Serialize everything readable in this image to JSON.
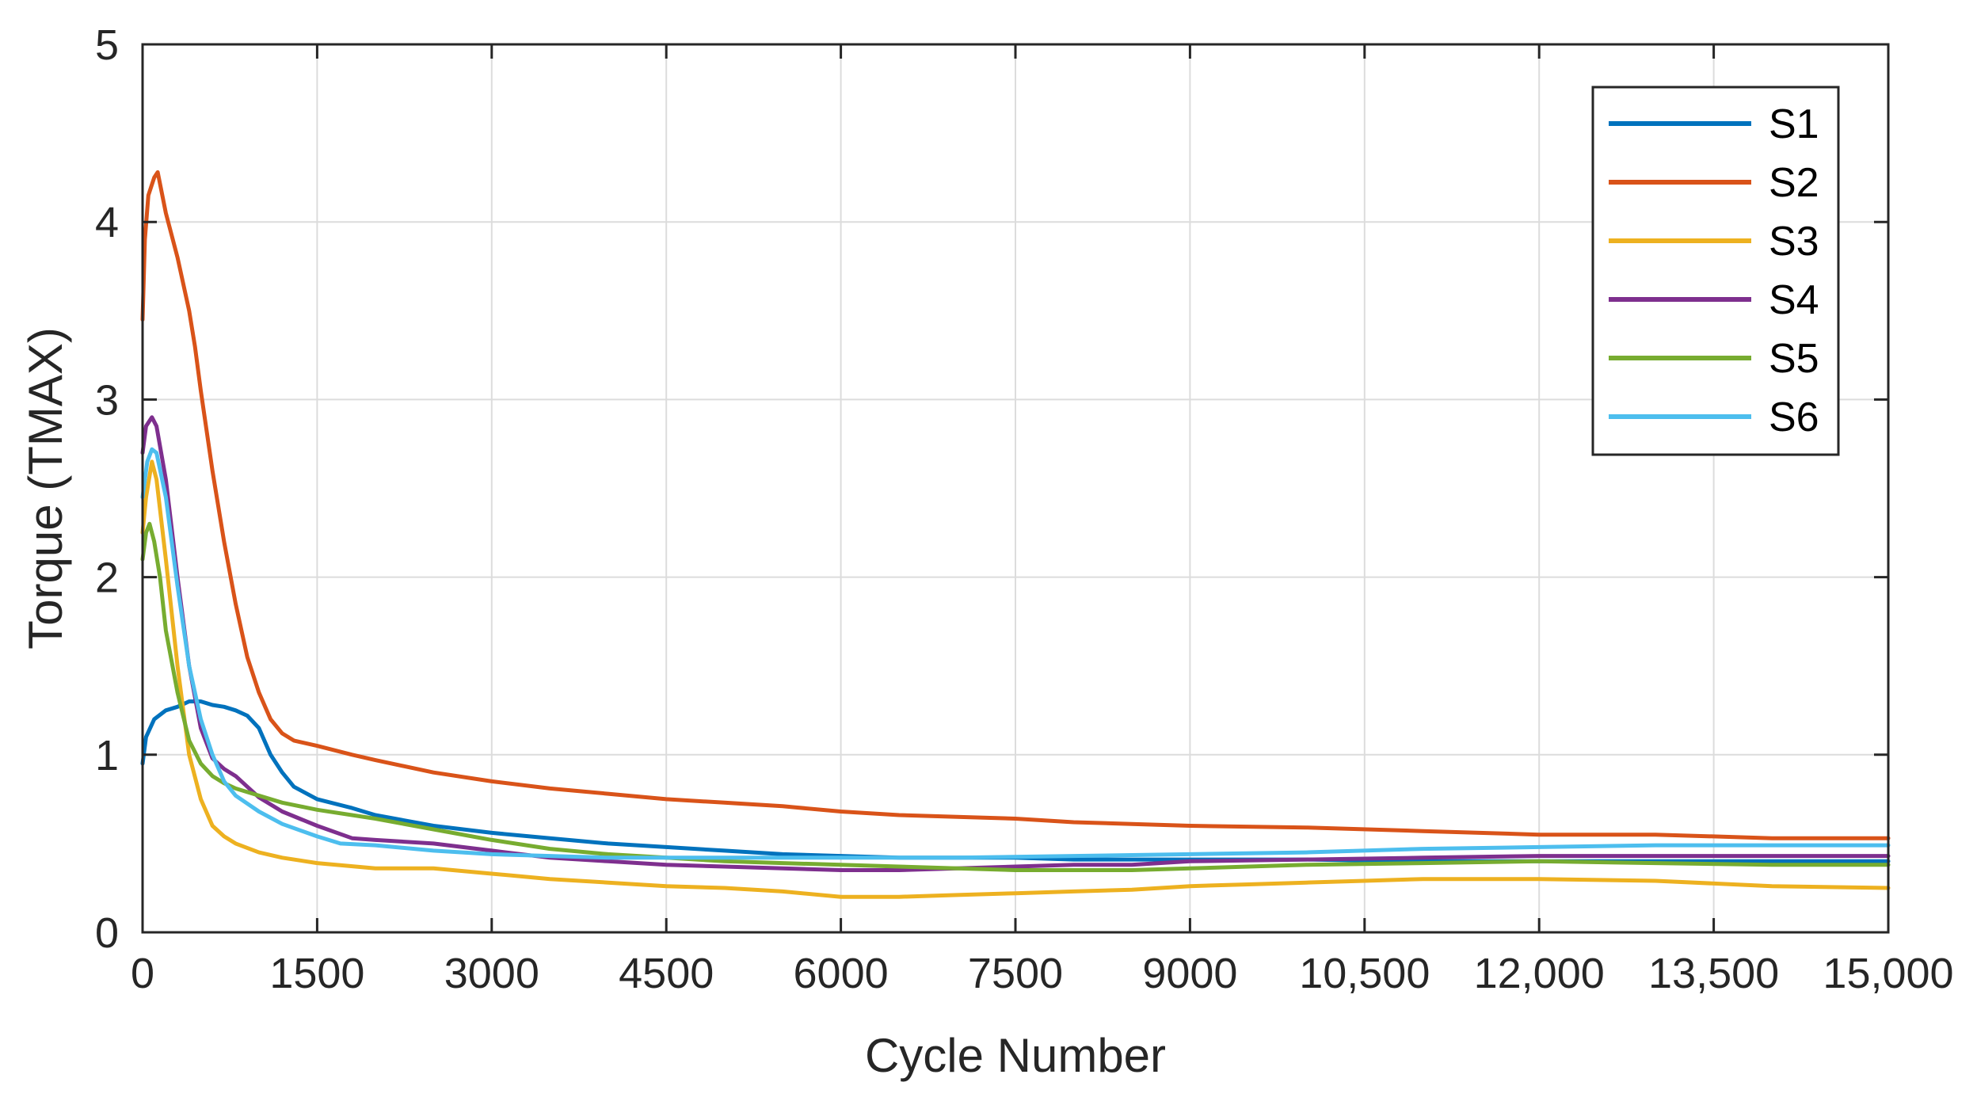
{
  "chart_data": {
    "type": "line",
    "title": "",
    "xlabel": "Cycle Number",
    "ylabel": "Torque (TMAX)",
    "xlim": [
      0,
      15000
    ],
    "ylim": [
      0,
      5
    ],
    "grid": true,
    "legend_position": "top-right",
    "x_ticks": [
      0,
      1500,
      3000,
      4500,
      6000,
      7500,
      9000,
      10500,
      12000,
      13500,
      15000
    ],
    "x_tick_labels": [
      "0",
      "1500",
      "3000",
      "4500",
      "6000",
      "7500",
      "9000",
      "10,500",
      "12,000",
      "13,500",
      "15,000"
    ],
    "y_ticks": [
      0,
      1,
      2,
      3,
      4,
      5
    ],
    "y_tick_labels": [
      "0",
      "1",
      "2",
      "3",
      "4",
      "5"
    ],
    "series": [
      {
        "name": "S1",
        "color": "#0072BD",
        "points": [
          [
            0,
            0.95
          ],
          [
            30,
            1.1
          ],
          [
            100,
            1.2
          ],
          [
            200,
            1.25
          ],
          [
            300,
            1.27
          ],
          [
            400,
            1.3
          ],
          [
            500,
            1.3
          ],
          [
            600,
            1.28
          ],
          [
            700,
            1.27
          ],
          [
            800,
            1.25
          ],
          [
            900,
            1.22
          ],
          [
            1000,
            1.15
          ],
          [
            1100,
            1.0
          ],
          [
            1200,
            0.9
          ],
          [
            1300,
            0.82
          ],
          [
            1500,
            0.75
          ],
          [
            1800,
            0.7
          ],
          [
            2000,
            0.66
          ],
          [
            2500,
            0.6
          ],
          [
            3000,
            0.56
          ],
          [
            3500,
            0.53
          ],
          [
            4000,
            0.5
          ],
          [
            4500,
            0.48
          ],
          [
            5000,
            0.46
          ],
          [
            5500,
            0.44
          ],
          [
            6000,
            0.43
          ],
          [
            6500,
            0.42
          ],
          [
            7000,
            0.42
          ],
          [
            7500,
            0.42
          ],
          [
            8000,
            0.41
          ],
          [
            9000,
            0.41
          ],
          [
            10000,
            0.41
          ],
          [
            11000,
            0.4
          ],
          [
            12000,
            0.4
          ],
          [
            13000,
            0.4
          ],
          [
            14000,
            0.4
          ],
          [
            15000,
            0.4
          ]
        ]
      },
      {
        "name": "S2",
        "color": "#D95319",
        "points": [
          [
            0,
            3.45
          ],
          [
            20,
            3.9
          ],
          [
            50,
            4.15
          ],
          [
            100,
            4.25
          ],
          [
            130,
            4.28
          ],
          [
            200,
            4.05
          ],
          [
            300,
            3.8
          ],
          [
            400,
            3.5
          ],
          [
            450,
            3.3
          ],
          [
            500,
            3.05
          ],
          [
            600,
            2.6
          ],
          [
            700,
            2.2
          ],
          [
            800,
            1.85
          ],
          [
            900,
            1.55
          ],
          [
            1000,
            1.35
          ],
          [
            1100,
            1.2
          ],
          [
            1200,
            1.12
          ],
          [
            1300,
            1.08
          ],
          [
            1500,
            1.05
          ],
          [
            1800,
            1.0
          ],
          [
            2000,
            0.97
          ],
          [
            2500,
            0.9
          ],
          [
            3000,
            0.85
          ],
          [
            3500,
            0.81
          ],
          [
            4000,
            0.78
          ],
          [
            4500,
            0.75
          ],
          [
            5000,
            0.73
          ],
          [
            5500,
            0.71
          ],
          [
            6000,
            0.68
          ],
          [
            6500,
            0.66
          ],
          [
            7000,
            0.65
          ],
          [
            7500,
            0.64
          ],
          [
            8000,
            0.62
          ],
          [
            8500,
            0.61
          ],
          [
            9000,
            0.6
          ],
          [
            10000,
            0.59
          ],
          [
            11000,
            0.57
          ],
          [
            12000,
            0.55
          ],
          [
            13000,
            0.55
          ],
          [
            14000,
            0.53
          ],
          [
            15000,
            0.53
          ]
        ]
      },
      {
        "name": "S3",
        "color": "#EDB120",
        "points": [
          [
            0,
            2.25
          ],
          [
            30,
            2.45
          ],
          [
            80,
            2.65
          ],
          [
            120,
            2.55
          ],
          [
            200,
            2.1
          ],
          [
            300,
            1.5
          ],
          [
            400,
            1.0
          ],
          [
            500,
            0.75
          ],
          [
            600,
            0.6
          ],
          [
            700,
            0.54
          ],
          [
            800,
            0.5
          ],
          [
            1000,
            0.45
          ],
          [
            1200,
            0.42
          ],
          [
            1500,
            0.39
          ],
          [
            2000,
            0.36
          ],
          [
            2500,
            0.36
          ],
          [
            3000,
            0.33
          ],
          [
            3500,
            0.3
          ],
          [
            4000,
            0.28
          ],
          [
            4500,
            0.26
          ],
          [
            5000,
            0.25
          ],
          [
            5500,
            0.23
          ],
          [
            6000,
            0.2
          ],
          [
            6500,
            0.2
          ],
          [
            7000,
            0.21
          ],
          [
            7500,
            0.22
          ],
          [
            8000,
            0.23
          ],
          [
            8500,
            0.24
          ],
          [
            9000,
            0.26
          ],
          [
            9500,
            0.27
          ],
          [
            10000,
            0.28
          ],
          [
            10500,
            0.29
          ],
          [
            11000,
            0.3
          ],
          [
            12000,
            0.3
          ],
          [
            13000,
            0.29
          ],
          [
            14000,
            0.26
          ],
          [
            15000,
            0.25
          ]
        ]
      },
      {
        "name": "S4",
        "color": "#7E2F8E",
        "points": [
          [
            0,
            2.7
          ],
          [
            30,
            2.85
          ],
          [
            80,
            2.9
          ],
          [
            120,
            2.85
          ],
          [
            200,
            2.55
          ],
          [
            300,
            2.0
          ],
          [
            400,
            1.5
          ],
          [
            500,
            1.15
          ],
          [
            600,
            0.98
          ],
          [
            700,
            0.92
          ],
          [
            800,
            0.88
          ],
          [
            900,
            0.82
          ],
          [
            1000,
            0.76
          ],
          [
            1200,
            0.68
          ],
          [
            1500,
            0.6
          ],
          [
            1800,
            0.53
          ],
          [
            2000,
            0.52
          ],
          [
            2500,
            0.5
          ],
          [
            3000,
            0.46
          ],
          [
            3500,
            0.42
          ],
          [
            4000,
            0.4
          ],
          [
            4500,
            0.38
          ],
          [
            5000,
            0.37
          ],
          [
            5500,
            0.36
          ],
          [
            6000,
            0.35
          ],
          [
            6500,
            0.35
          ],
          [
            7000,
            0.36
          ],
          [
            7500,
            0.37
          ],
          [
            8000,
            0.38
          ],
          [
            8500,
            0.38
          ],
          [
            9000,
            0.4
          ],
          [
            10000,
            0.41
          ],
          [
            11000,
            0.42
          ],
          [
            12000,
            0.43
          ],
          [
            13000,
            0.43
          ],
          [
            14000,
            0.43
          ],
          [
            15000,
            0.43
          ]
        ]
      },
      {
        "name": "S5",
        "color": "#77AC30",
        "points": [
          [
            0,
            2.1
          ],
          [
            30,
            2.25
          ],
          [
            60,
            2.3
          ],
          [
            100,
            2.2
          ],
          [
            150,
            2.0
          ],
          [
            200,
            1.7
          ],
          [
            300,
            1.35
          ],
          [
            400,
            1.08
          ],
          [
            500,
            0.95
          ],
          [
            600,
            0.88
          ],
          [
            700,
            0.84
          ],
          [
            800,
            0.81
          ],
          [
            1000,
            0.77
          ],
          [
            1200,
            0.73
          ],
          [
            1500,
            0.69
          ],
          [
            2000,
            0.64
          ],
          [
            2500,
            0.58
          ],
          [
            3000,
            0.52
          ],
          [
            3500,
            0.47
          ],
          [
            4000,
            0.44
          ],
          [
            4500,
            0.42
          ],
          [
            5000,
            0.4
          ],
          [
            5500,
            0.39
          ],
          [
            6000,
            0.38
          ],
          [
            6500,
            0.37
          ],
          [
            7000,
            0.36
          ],
          [
            7500,
            0.35
          ],
          [
            8000,
            0.35
          ],
          [
            8500,
            0.35
          ],
          [
            9000,
            0.36
          ],
          [
            10000,
            0.38
          ],
          [
            11000,
            0.39
          ],
          [
            12000,
            0.4
          ],
          [
            13000,
            0.39
          ],
          [
            14000,
            0.38
          ],
          [
            15000,
            0.38
          ]
        ]
      },
      {
        "name": "S6",
        "color": "#4DBEEE",
        "points": [
          [
            0,
            2.45
          ],
          [
            40,
            2.65
          ],
          [
            80,
            2.72
          ],
          [
            120,
            2.7
          ],
          [
            200,
            2.45
          ],
          [
            300,
            1.95
          ],
          [
            400,
            1.5
          ],
          [
            500,
            1.2
          ],
          [
            600,
            1.0
          ],
          [
            700,
            0.85
          ],
          [
            800,
            0.77
          ],
          [
            1000,
            0.68
          ],
          [
            1200,
            0.61
          ],
          [
            1500,
            0.54
          ],
          [
            1700,
            0.5
          ],
          [
            2000,
            0.49
          ],
          [
            2500,
            0.46
          ],
          [
            3000,
            0.44
          ],
          [
            3500,
            0.43
          ],
          [
            4000,
            0.42
          ],
          [
            4500,
            0.42
          ],
          [
            5000,
            0.42
          ],
          [
            5500,
            0.42
          ],
          [
            6000,
            0.42
          ],
          [
            7000,
            0.42
          ],
          [
            8000,
            0.43
          ],
          [
            9000,
            0.44
          ],
          [
            10000,
            0.45
          ],
          [
            11000,
            0.47
          ],
          [
            12000,
            0.48
          ],
          [
            13000,
            0.49
          ],
          [
            14000,
            0.49
          ],
          [
            15000,
            0.49
          ]
        ]
      }
    ]
  }
}
